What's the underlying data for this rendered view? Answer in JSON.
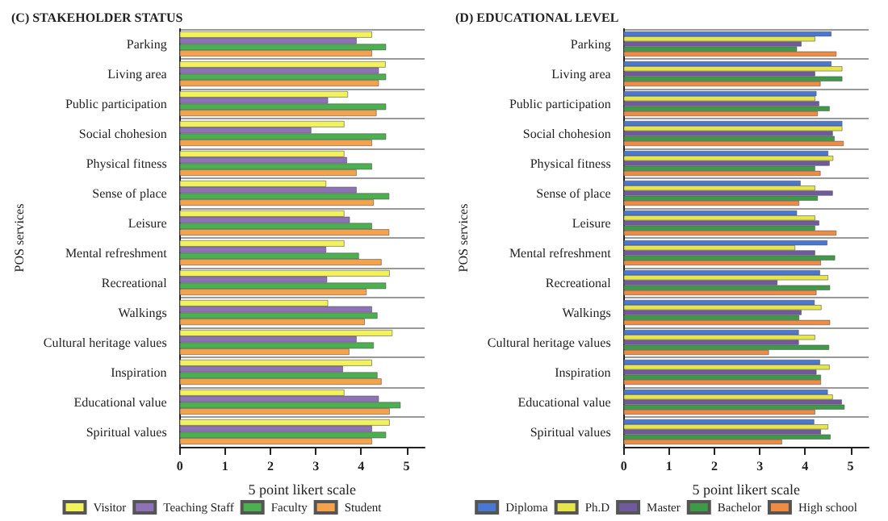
{
  "chart_data": [
    {
      "type": "bar",
      "orientation": "horizontal",
      "title": "(C) STAKEHOLDER STATUS",
      "xlabel": "5 point likert scale",
      "ylabel": "POS services",
      "categories": [
        "Parking",
        "Living area",
        "Public participation",
        "Social chohesion",
        "Physical fitness",
        "Sense of place",
        "Leisure",
        "Mental refreshment",
        "Recreational",
        "Walkings",
        "Cultural heritage values",
        "Inspiration",
        "Educational value",
        "Spiritual values"
      ],
      "series": [
        {
          "name": "Visitor",
          "color": "#f2f25c",
          "values": [
            4.24,
            4.54,
            3.71,
            3.63,
            3.63,
            3.23,
            3.63,
            3.63,
            4.63,
            3.27,
            4.69,
            4.24,
            3.63,
            4.63
          ]
        },
        {
          "name": "Teaching Staff",
          "color": "#8e72b8",
          "values": [
            3.9,
            4.39,
            3.27,
            2.9,
            3.69,
            3.9,
            3.75,
            3.23,
            3.25,
            4.24,
            3.9,
            3.6,
            4.39,
            4.24
          ]
        },
        {
          "name": "Faculty",
          "color": "#4caf50",
          "values": [
            4.55,
            4.55,
            4.55,
            4.55,
            4.24,
            4.62,
            4.24,
            3.95,
            4.55,
            4.36,
            4.28,
            4.36,
            4.87,
            4.55
          ]
        },
        {
          "name": "Student",
          "color": "#f5a24c",
          "values": [
            4.24,
            4.39,
            4.34,
            4.24,
            3.9,
            4.28,
            4.62,
            4.45,
            4.12,
            4.08,
            3.74,
            4.45,
            4.63,
            4.24
          ]
        }
      ],
      "xlim": [
        0,
        5.4
      ],
      "xticks": [
        0,
        1,
        2,
        3,
        4,
        5
      ],
      "grid": "y",
      "legend": "bottom"
    },
    {
      "type": "bar",
      "orientation": "horizontal",
      "title": "(D) EDUCATIONAL LEVEL",
      "xlabel": "5 point likert scale",
      "ylabel": "POS services",
      "categories": [
        "Parking",
        "Living area",
        "Public participation",
        "Social chohesion",
        "Physical fitness",
        "Sense of place",
        "Leisure",
        "Mental refreshment",
        "Recreational",
        "Walkings",
        "Cultural heritage values",
        "Inspiration",
        "Educational value",
        "Spiritual values"
      ],
      "series": [
        {
          "name": "Diploma",
          "color": "#4a78d0",
          "values": [
            4.58,
            4.58,
            4.25,
            4.82,
            4.51,
            3.9,
            3.82,
            4.49,
            4.33,
            4.21,
            3.86,
            4.33,
            4.5,
            4.2
          ]
        },
        {
          "name": "Ph.D",
          "color": "#e6e64c",
          "values": [
            4.22,
            4.82,
            4.22,
            4.82,
            4.62,
            4.22,
            4.22,
            3.78,
            4.51,
            4.36,
            4.22,
            4.54,
            4.61,
            4.51
          ]
        },
        {
          "name": "Master",
          "color": "#6f5a9e",
          "values": [
            3.92,
            4.22,
            4.31,
            4.61,
            4.54,
            4.61,
            4.31,
            4.22,
            3.39,
            3.92,
            3.86,
            4.25,
            4.81,
            4.35
          ]
        },
        {
          "name": "Bachelor",
          "color": "#3f9a48",
          "values": [
            3.82,
            4.82,
            4.54,
            4.65,
            4.22,
            4.28,
            4.22,
            4.66,
            4.55,
            3.87,
            4.53,
            4.35,
            4.87,
            4.56
          ]
        },
        {
          "name": "High school",
          "color": "#ef8c44",
          "values": [
            4.69,
            4.34,
            4.28,
            4.85,
            4.34,
            3.87,
            4.69,
            4.35,
            4.25,
            4.55,
            3.2,
            4.35,
            4.22,
            3.49
          ]
        }
      ],
      "xlim": [
        0,
        5.4
      ],
      "xticks": [
        0,
        1,
        2,
        3,
        4,
        5
      ],
      "grid": "y",
      "legend": "bottom"
    }
  ]
}
